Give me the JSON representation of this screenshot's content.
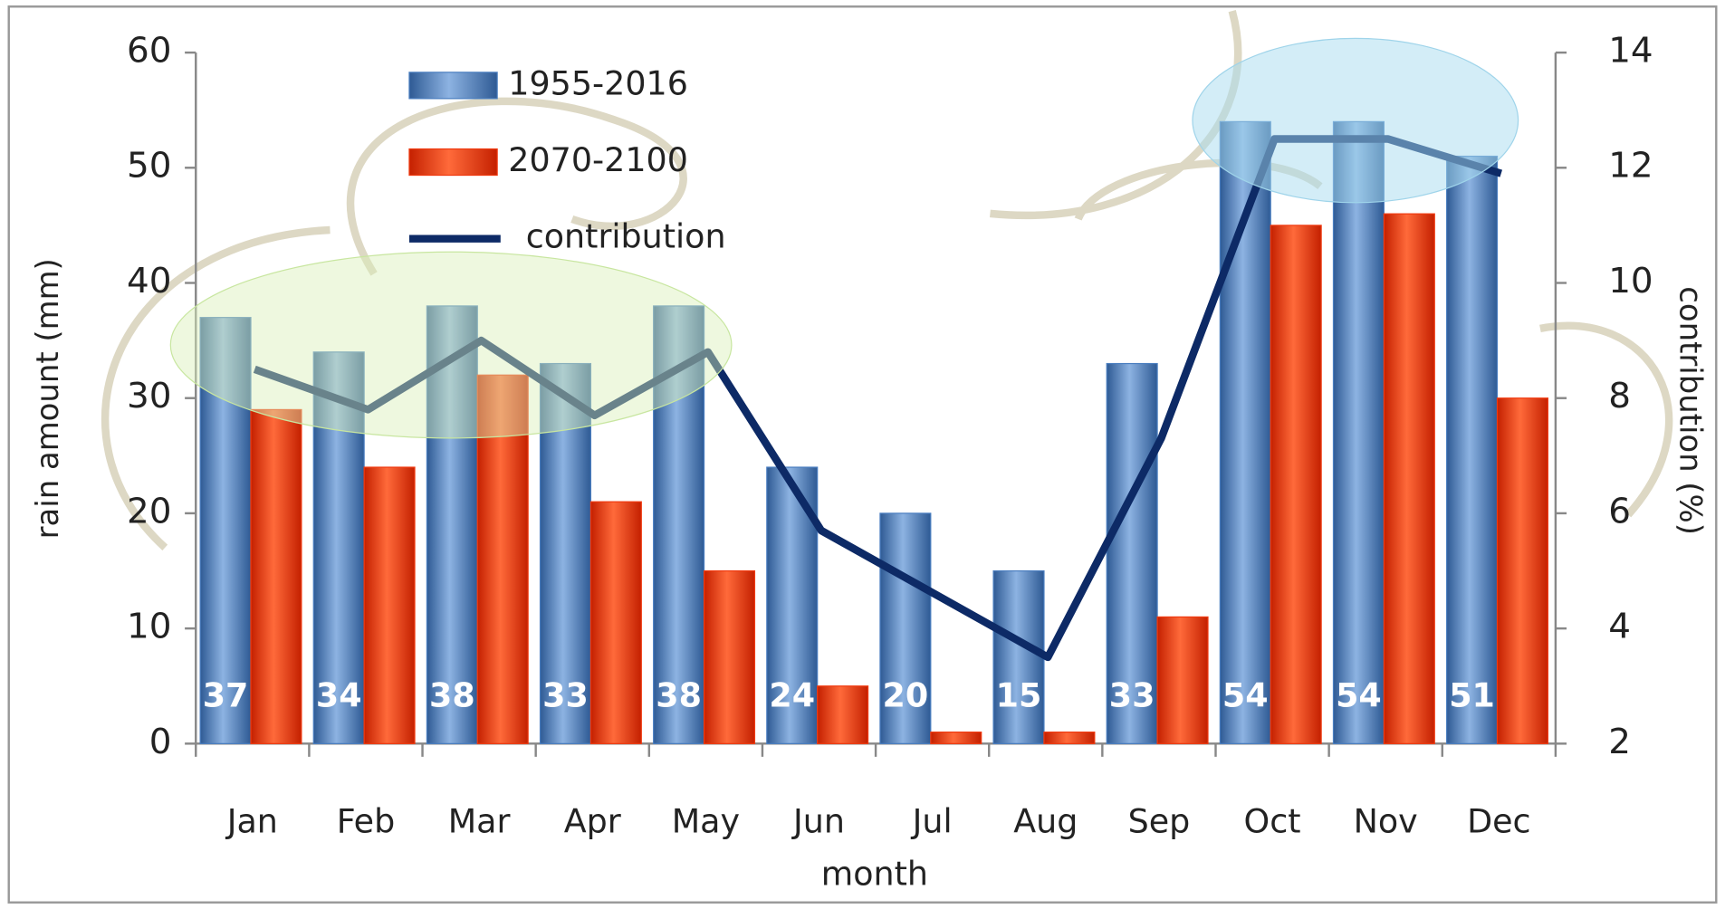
{
  "chart_data": {
    "type": "bar",
    "categories": [
      "Jan",
      "Feb",
      "Mar",
      "Apr",
      "May",
      "Jun",
      "Jul",
      "Aug",
      "Sep",
      "Oct",
      "Nov",
      "Dec"
    ],
    "series": [
      {
        "name": "1955-2016",
        "color": "#4a7ec0",
        "values": [
          37,
          34,
          38,
          33,
          38,
          24,
          20,
          15,
          33,
          54,
          54,
          51
        ]
      },
      {
        "name": "2070-2100",
        "color": "#f03a10",
        "values": [
          29,
          24,
          32,
          21,
          15,
          5,
          1,
          1,
          11,
          45,
          46,
          30
        ]
      },
      {
        "name": "contribution",
        "color": "#0d2a66",
        "type": "line",
        "axis": "y2",
        "values": [
          8.5,
          7.8,
          9.0,
          7.7,
          8.8,
          5.7,
          4.6,
          3.5,
          7.3,
          12.5,
          12.5,
          11.9
        ]
      }
    ],
    "xlabel": "month",
    "ylabel": "rain amount (mm)",
    "y2label": "contribution (%)",
    "ylim": [
      0,
      60
    ],
    "yticks": [
      0,
      10,
      20,
      30,
      40,
      50,
      60
    ],
    "y2lim": [
      2,
      14
    ],
    "y2ticks": [
      2,
      4,
      6,
      8,
      10,
      12,
      14
    ],
    "legend": "top-left"
  }
}
